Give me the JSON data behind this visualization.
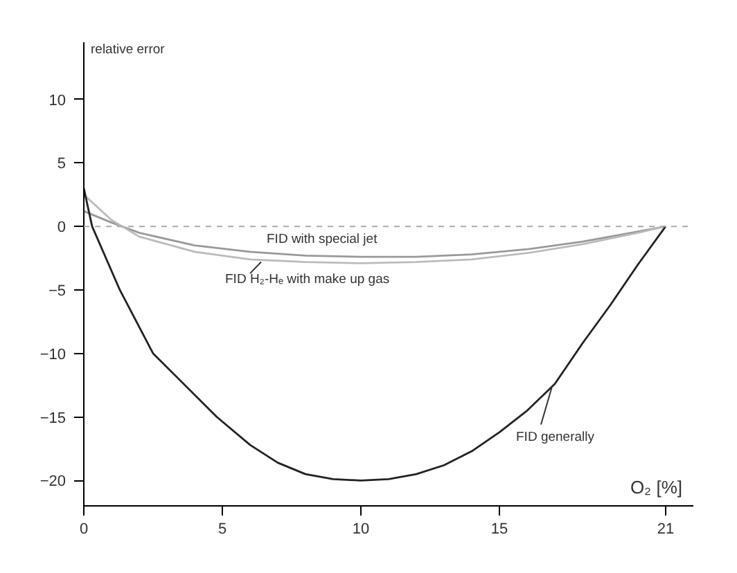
{
  "chart_data": {
    "type": "line",
    "xlabel": "O₂ [%]",
    "ylabel": "relative error",
    "xlim": [
      0,
      22
    ],
    "ylim": [
      -22,
      14.5
    ],
    "xticks": [
      0,
      5,
      10,
      15,
      21
    ],
    "yticks": [
      -20,
      -15,
      -10,
      -5,
      0,
      5,
      10
    ],
    "grid": false,
    "marker": "none",
    "line_style": "solid",
    "ref_lines": [
      {
        "axis": "y",
        "value": 0,
        "label": null,
        "color": "#aaaaaa",
        "line_style": "dashed"
      }
    ],
    "series": [
      {
        "name": "FID with special jet",
        "color": "#999999",
        "x": [
          0,
          1,
          2,
          4,
          6,
          8,
          10,
          12,
          14,
          16,
          18,
          20,
          21
        ],
        "values": [
          1.2,
          0.3,
          -0.5,
          -1.5,
          -2,
          -2.3,
          -2.4,
          -2.4,
          -2.2,
          -1.8,
          -1.2,
          -0.4,
          0
        ]
      },
      {
        "name": "FID  H₂-Hₑ with make up gas",
        "color": "#bbbbbb",
        "x": [
          0,
          1,
          2,
          4,
          6,
          8,
          10,
          12,
          14,
          16,
          18,
          20,
          21
        ],
        "values": [
          2.5,
          0.5,
          -0.8,
          -2,
          -2.6,
          -2.8,
          -2.9,
          -2.8,
          -2.6,
          -2.1,
          -1.4,
          -0.5,
          0
        ]
      },
      {
        "name": "FID generally",
        "color": "#222222",
        "x": [
          0,
          0.3,
          1.3,
          2.5,
          4.8,
          6,
          7,
          8,
          9,
          10,
          11,
          12,
          13,
          14,
          15,
          16,
          17,
          18,
          19,
          20,
          21
        ],
        "values": [
          3,
          0,
          -5,
          -10,
          -15,
          -17.2,
          -18.6,
          -19.5,
          -19.9,
          -20,
          -19.9,
          -19.5,
          -18.8,
          -17.7,
          -16.2,
          -14.5,
          -12.4,
          -9.2,
          -6.2,
          -3,
          0
        ]
      }
    ]
  }
}
